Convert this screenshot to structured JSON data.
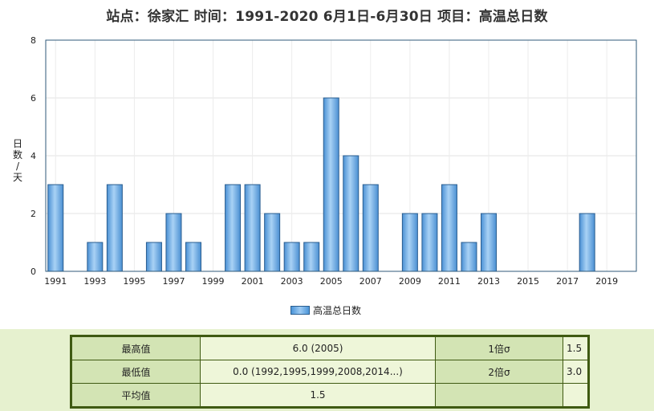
{
  "chart_data": {
    "type": "bar",
    "title": "站点：徐家汇 时间：1991-2020  6月1日-6月30日 项目：高温总日数",
    "ylabel": "日数/天",
    "xlabel": "",
    "ylim": [
      0,
      8
    ],
    "yticks": [
      0,
      2,
      4,
      6,
      8
    ],
    "xtick_labels": [
      "1991",
      "1993",
      "1995",
      "1997",
      "1999",
      "2001",
      "2003",
      "2005",
      "2007",
      "2009",
      "2011",
      "2013",
      "2015",
      "2017",
      "2019"
    ],
    "categories": [
      "1991",
      "1992",
      "1993",
      "1994",
      "1995",
      "1996",
      "1997",
      "1998",
      "1999",
      "2000",
      "2001",
      "2002",
      "2003",
      "2004",
      "2005",
      "2006",
      "2007",
      "2008",
      "2009",
      "2010",
      "2011",
      "2012",
      "2013",
      "2014",
      "2015",
      "2016",
      "2017",
      "2018",
      "2019",
      "2020"
    ],
    "series": [
      {
        "name": "高温总日数",
        "values": [
          3,
          0,
          1,
          3,
          0,
          1,
          2,
          1,
          0,
          3,
          3,
          2,
          1,
          1,
          6,
          4,
          3,
          0,
          2,
          2,
          3,
          1,
          2,
          0,
          0,
          0,
          0,
          2,
          0,
          0
        ]
      }
    ],
    "grid": true,
    "legend": "bottom-center",
    "colors": {
      "bar": "#6aaeea",
      "bar_edge": "#2a5d8f",
      "plot_border": "#2f5a7a"
    }
  },
  "stats": {
    "rows": [
      {
        "label": "最高值",
        "value": "6.0 (2005)",
        "sigma_label": "1倍σ",
        "sigma_value": "1.5"
      },
      {
        "label": "最低值",
        "value": "0.0 (1992,1995,1999,2008,2014...)",
        "sigma_label": "2倍σ",
        "sigma_value": "3.0"
      },
      {
        "label": "平均值",
        "value": "1.5",
        "sigma_label": "",
        "sigma_value": ""
      }
    ]
  }
}
